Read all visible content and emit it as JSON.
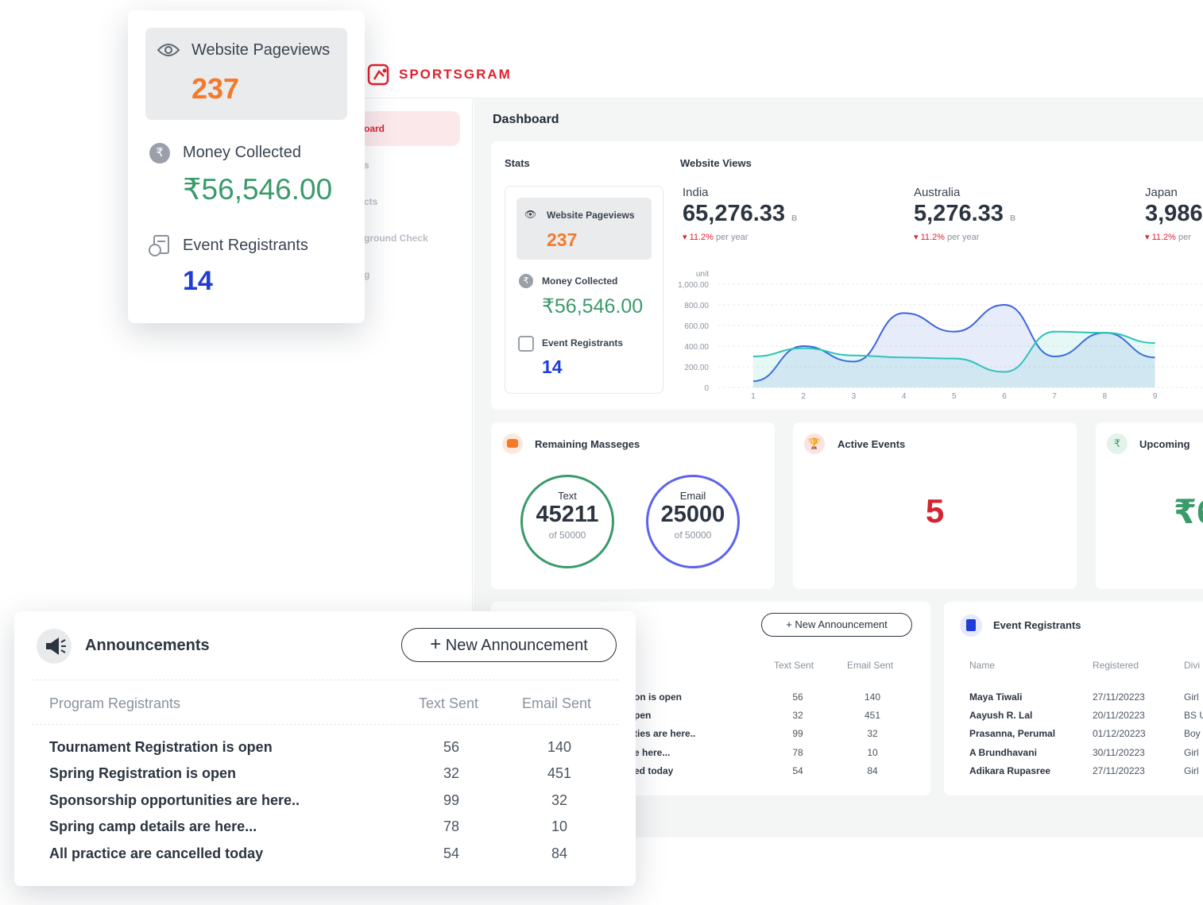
{
  "app": {
    "brand": "SPORTSGRAM",
    "sidebar": [
      {
        "label": "oard"
      },
      {
        "label": "s"
      },
      {
        "label": "cts"
      },
      {
        "label": "ground Check"
      },
      {
        "label": "g"
      }
    ],
    "page_title": "Dashboard"
  },
  "stats": {
    "title": "Stats",
    "pageviews_label": "Website Pageviews",
    "pageviews_value": "237",
    "money_label": "Money Collected",
    "money_value": "₹56,546.00",
    "registrants_label": "Event Registrants",
    "registrants_value": "14"
  },
  "website_views": {
    "title": "Website Views",
    "countries": [
      {
        "name": "India",
        "value": "65,276.33",
        "unit": "B",
        "change": "11.2%",
        "period": "per year"
      },
      {
        "name": "Australia",
        "value": "5,276.33",
        "unit": "B",
        "change": "11.2%",
        "period": "per year"
      },
      {
        "name": "Japan",
        "value": "3,986",
        "unit": "",
        "change": "11.2%",
        "period": "per"
      }
    ]
  },
  "chart_data": {
    "type": "area",
    "ylabel": "unit",
    "ylim": [
      0,
      1000
    ],
    "yticks": [
      "1,000.00",
      "800.00",
      "600.00",
      "400.00",
      "200.00",
      "0"
    ],
    "x": [
      1,
      2,
      3,
      4,
      5,
      6,
      7,
      8,
      9
    ],
    "series": [
      {
        "color": "#3d63e0",
        "values": [
          60,
          400,
          250,
          720,
          540,
          800,
          300,
          530,
          290
        ]
      },
      {
        "color": "#2ec4b6",
        "values": [
          300,
          380,
          310,
          290,
          280,
          150,
          540,
          530,
          430
        ]
      }
    ],
    "grid": true
  },
  "messages": {
    "title": "Remaining Masseges",
    "text_label": "Text",
    "text_value": "45211",
    "text_of": "of 50000",
    "email_label": "Email",
    "email_value": "25000",
    "email_of": "of 50000"
  },
  "active_events": {
    "title": "Active Events",
    "value": "5"
  },
  "upcoming": {
    "title": "Upcoming",
    "value": "₹6"
  },
  "announcements": {
    "title": "Announcements",
    "new_button": "New Announcement",
    "headers": [
      "Program Registrants",
      "Text Sent",
      "Email Sent"
    ],
    "rows": [
      {
        "name": "Tournament Registration is open",
        "text": "56",
        "email": "140"
      },
      {
        "name": "Spring Registration is open",
        "text": "32",
        "email": "451"
      },
      {
        "name": "Sponsorship opportunities are here..",
        "text": "99",
        "email": "32"
      },
      {
        "name": "Spring camp details are here...",
        "text": "78",
        "email": "10"
      },
      {
        "name": "All practice are cancelled today",
        "text": "54",
        "email": "84"
      }
    ],
    "bg_rows": [
      "on is open",
      "pen",
      "ties are here..",
      "e here...",
      "ed today"
    ]
  },
  "event_registrants": {
    "title": "Event Registrants",
    "headers": [
      "Name",
      "Registered",
      "Divi"
    ],
    "rows": [
      {
        "name": "Maya Tiwali",
        "date": "27/11/20223",
        "div": "Girl"
      },
      {
        "name": "Aayush R. Lal",
        "date": "20/11/20223",
        "div": "BS U"
      },
      {
        "name": "Prasanna, Perumal",
        "date": "01/12/20223",
        "div": "Boy"
      },
      {
        "name": "A Brundhavani",
        "date": "30/11/20223",
        "div": "Girl"
      },
      {
        "name": "Adikara Rupasree",
        "date": "27/11/20223",
        "div": "Girl"
      }
    ]
  },
  "colors": {
    "brand": "#e0202f",
    "orange": "#f5792a",
    "green": "#3a9a6a",
    "blue": "#1f3cd6",
    "teal": "#2ec4b6",
    "chart_blue": "#3d63e0"
  }
}
